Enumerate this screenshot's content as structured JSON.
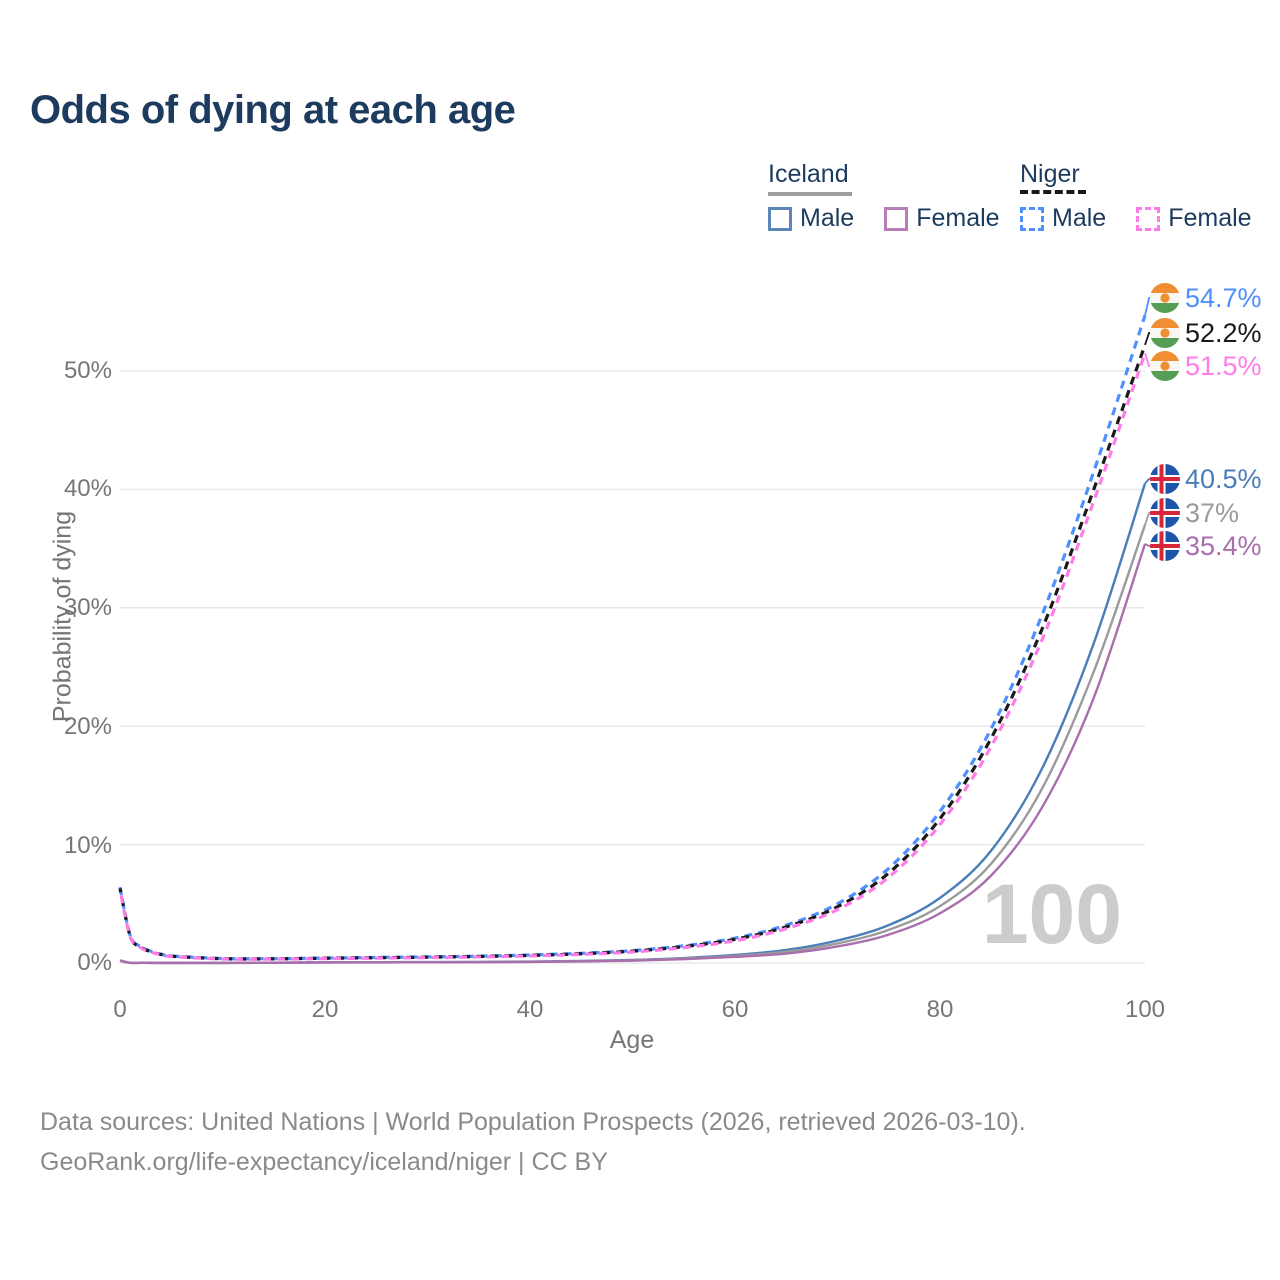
{
  "header": {
    "title": "Odds of dying at each age"
  },
  "colors": {
    "title": "#1d3b5e",
    "legend_text": "#1d3b5e",
    "axis_text": "#767676",
    "grid": "#e9e9e9",
    "watermark": "#cccccc",
    "footer": "#8a8a8a"
  },
  "legend": {
    "iceland": {
      "label": "Iceland",
      "male": "Male",
      "female": "Female",
      "line_color": "#9e9e9e",
      "male_color": "#5b86b7",
      "female_color": "#b77fb5"
    },
    "niger": {
      "label": "Niger",
      "male": "Male",
      "female": "Female",
      "line_color": "#1a1a1a",
      "male_color": "#4d90fe",
      "female_color": "#ff7ce8"
    }
  },
  "chart_data": {
    "type": "line",
    "title": "Odds of dying at each age",
    "xlabel": "Age",
    "ylabel": "Probability of dying",
    "xlim": [
      0,
      100
    ],
    "ylim": [
      0,
      57
    ],
    "grid": true,
    "legend_position": "top-right",
    "xticks": [
      0,
      20,
      40,
      60,
      80,
      100
    ],
    "xtick_labels": [
      "0",
      "20",
      "40",
      "60",
      "80",
      "100"
    ],
    "yticks": [
      0,
      10,
      20,
      30,
      40,
      50
    ],
    "ytick_labels": [
      "0%",
      "10%",
      "20%",
      "30%",
      "40%",
      "50%"
    ],
    "age_counter": "100",
    "x": [
      0,
      1,
      2,
      3,
      4,
      5,
      10,
      15,
      20,
      25,
      30,
      35,
      40,
      45,
      50,
      55,
      60,
      65,
      70,
      75,
      80,
      85,
      90,
      95,
      100
    ],
    "series": [
      {
        "name": "Niger Male",
        "country": "Niger",
        "sex": "male",
        "style": "dashed",
        "color": "#4d90fe",
        "end_label": "54.7%",
        "values": [
          6.4,
          2.3,
          1.4,
          1.0,
          0.75,
          0.6,
          0.38,
          0.37,
          0.42,
          0.47,
          0.52,
          0.58,
          0.68,
          0.82,
          1.05,
          1.45,
          2.1,
          3.2,
          5.0,
          8.0,
          12.8,
          19.8,
          29.5,
          41.5,
          54.7
        ]
      },
      {
        "name": "Niger Total",
        "country": "Niger",
        "sex": "total",
        "style": "dashed",
        "color": "#1a1a1a",
        "end_label": "52.2%",
        "values": [
          6.3,
          2.25,
          1.35,
          0.95,
          0.72,
          0.57,
          0.36,
          0.35,
          0.4,
          0.44,
          0.49,
          0.55,
          0.64,
          0.78,
          1.0,
          1.38,
          2.0,
          3.05,
          4.75,
          7.6,
          12.2,
          19.0,
          28.3,
          40.0,
          52.2
        ]
      },
      {
        "name": "Niger Female",
        "country": "Niger",
        "sex": "female",
        "style": "dashed",
        "color": "#ff7ce8",
        "end_label": "51.5%",
        "values": [
          6.2,
          2.2,
          1.3,
          0.92,
          0.7,
          0.55,
          0.34,
          0.33,
          0.37,
          0.41,
          0.46,
          0.51,
          0.6,
          0.73,
          0.93,
          1.3,
          1.88,
          2.9,
          4.5,
          7.25,
          11.7,
          18.3,
          27.4,
          39.0,
          51.5
        ]
      },
      {
        "name": "Iceland Male",
        "country": "Iceland",
        "sex": "male",
        "style": "solid",
        "color": "#4a7eb8",
        "end_label": "40.5%",
        "values": [
          0.22,
          0.02,
          0.015,
          0.012,
          0.01,
          0.01,
          0.01,
          0.03,
          0.06,
          0.07,
          0.08,
          0.09,
          0.12,
          0.17,
          0.26,
          0.42,
          0.68,
          1.1,
          1.9,
          3.2,
          5.5,
          9.5,
          16.5,
          27.0,
          40.5
        ]
      },
      {
        "name": "Iceland Total",
        "country": "Iceland",
        "sex": "total",
        "style": "solid",
        "color": "#9b9b9b",
        "end_label": "37%",
        "values": [
          0.2,
          0.018,
          0.013,
          0.011,
          0.009,
          0.009,
          0.009,
          0.025,
          0.05,
          0.06,
          0.07,
          0.08,
          0.1,
          0.15,
          0.23,
          0.37,
          0.6,
          0.95,
          1.65,
          2.8,
          4.8,
          8.4,
          14.8,
          24.6,
          37.0
        ]
      },
      {
        "name": "Iceland Female",
        "country": "Iceland",
        "sex": "female",
        "style": "solid",
        "color": "#a96fad",
        "end_label": "35.4%",
        "values": [
          0.18,
          0.016,
          0.012,
          0.01,
          0.008,
          0.008,
          0.008,
          0.02,
          0.04,
          0.05,
          0.06,
          0.07,
          0.09,
          0.13,
          0.2,
          0.32,
          0.52,
          0.8,
          1.4,
          2.4,
          4.2,
          7.4,
          13.2,
          22.4,
          35.4
        ]
      }
    ]
  },
  "footer": {
    "line1": "Data sources: United Nations | World Population Prospects (2026, retrieved 2026-03-10).",
    "line2": "GeoRank.org/life-expectancy/iceland/niger | CC BY"
  }
}
